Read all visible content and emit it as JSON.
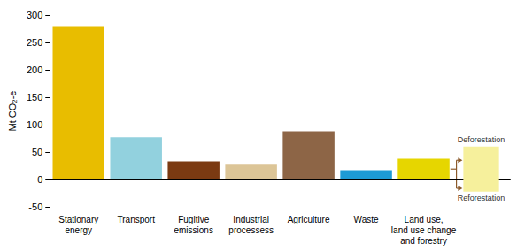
{
  "chart_data": {
    "type": "bar",
    "y_label": "Mt CO₂-e",
    "categories": [
      "Stationary energy",
      "Transport",
      "Fugitive emissions",
      "Industrial processess",
      "Agriculture",
      "Waste",
      "Land use, land use change and forestry",
      null
    ],
    "colors": [
      "#e8bd00",
      "#92d1de",
      "#7b3a12",
      "#dcc597",
      "#8d6546",
      "#1d9bd6",
      "#e6d600",
      "#f6f09c"
    ],
    "series": [
      {
        "values": [
          280,
          77,
          33,
          27,
          88,
          17,
          38,
          null
        ]
      },
      {
        "name": "Deforestation",
        "values": [
          null,
          null,
          null,
          null,
          null,
          null,
          null,
          60
        ]
      },
      {
        "name": "Reforestation",
        "values": [
          null,
          null,
          null,
          null,
          null,
          null,
          null,
          -22
        ]
      }
    ],
    "stacked": true,
    "ylim": [
      -50,
      300
    ],
    "yticks": [
      -50,
      0,
      50,
      100,
      150,
      200,
      250,
      300
    ],
    "grid": false
  }
}
